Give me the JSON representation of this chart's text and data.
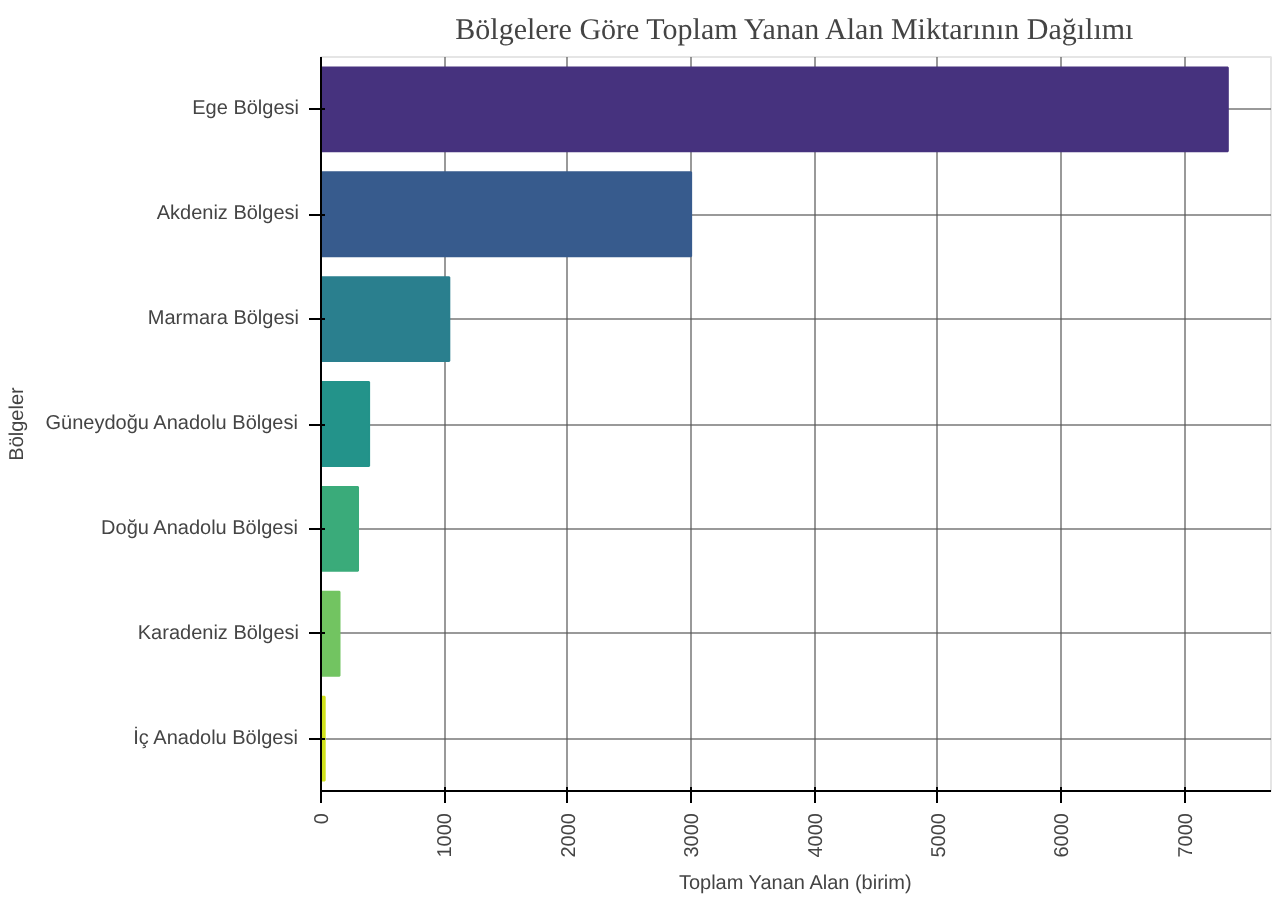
{
  "chart_data": {
    "type": "bar",
    "orientation": "horizontal",
    "title": "Bölgelere Göre Toplam Yanan Alan Miktarının Dağılımı",
    "xlabel": "Toplam Yanan Alan (birim)",
    "ylabel": "Bölgeler",
    "categories": [
      "Ege Bölgesi",
      "Akdeniz Bölgesi",
      "Marmara Bölgesi",
      "Güneydoğu Anadolu Bölgesi",
      "Doğu Anadolu Bölgesi",
      "Karadeniz Bölgesi",
      "İç Anadolu Bölgesi"
    ],
    "values": [
      7350,
      3000,
      1040,
      390,
      300,
      150,
      30
    ],
    "colors": [
      "#46327e",
      "#375b8d",
      "#2a7f8e",
      "#23938a",
      "#3aab7a",
      "#72c461",
      "#d0e11c"
    ],
    "xlim": [
      0,
      7700
    ],
    "xticks": [
      0,
      1000,
      2000,
      3000,
      4000,
      5000,
      6000,
      7000
    ],
    "grid": true
  }
}
